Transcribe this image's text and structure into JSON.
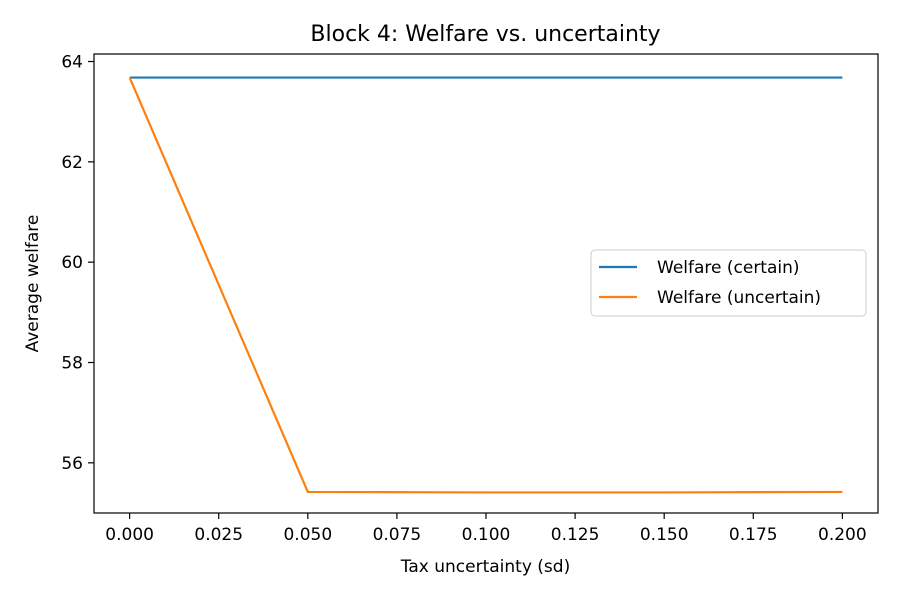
{
  "chart_data": {
    "type": "line",
    "title": "Block 4: Welfare vs. uncertainty",
    "xlabel": "Tax uncertainty (sd)",
    "ylabel": "Average welfare",
    "xlim": [
      -0.01,
      0.21
    ],
    "ylim": [
      55.0,
      64.15
    ],
    "x_ticks": [
      0.0,
      0.025,
      0.05,
      0.075,
      0.1,
      0.125,
      0.15,
      0.175,
      0.2
    ],
    "x_tick_labels": [
      "0.000",
      "0.025",
      "0.050",
      "0.075",
      "0.100",
      "0.125",
      "0.150",
      "0.175",
      "0.200"
    ],
    "y_ticks": [
      56,
      58,
      60,
      62,
      64
    ],
    "y_tick_labels": [
      "56",
      "58",
      "60",
      "62",
      "64"
    ],
    "grid": false,
    "legend_position": "center-right",
    "x": [
      0.0,
      0.05,
      0.1,
      0.15,
      0.2
    ],
    "series": [
      {
        "name": "Welfare (certain)",
        "color": "#1f77b4",
        "values": [
          63.68,
          63.68,
          63.68,
          63.68,
          63.68
        ]
      },
      {
        "name": "Welfare (uncertain)",
        "color": "#ff7f0e",
        "values": [
          63.68,
          55.42,
          55.41,
          55.41,
          55.42
        ]
      }
    ]
  }
}
